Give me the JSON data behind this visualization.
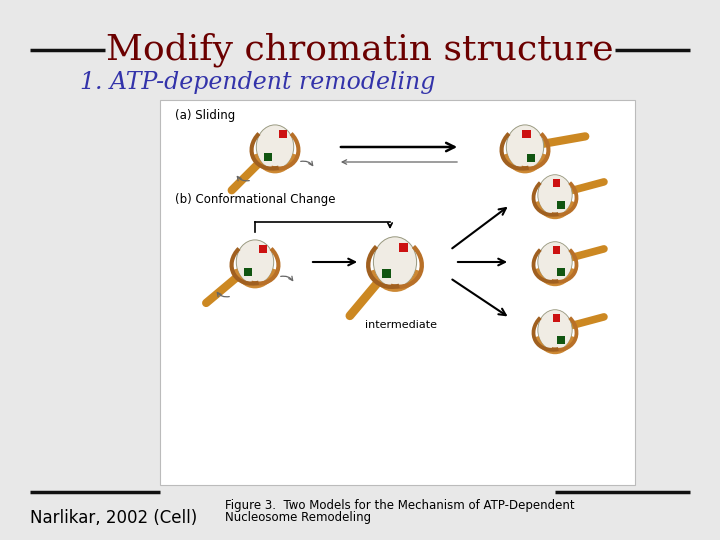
{
  "title": "Modify chromatin structure",
  "subtitle": "1. ATP-dependent remodeling",
  "citation": "Narlikar, 2002 (Cell)",
  "figure_caption_line1": "Figure 3.  Two Models for the Mechanism of ATP-Dependent",
  "figure_caption_line2": "Nucleosome Remodeling",
  "bg_color": "#e8e8e8",
  "panel_bg": "#ffffff",
  "title_color": "#6b0000",
  "subtitle_color": "#3333aa",
  "citation_color": "#000000",
  "caption_color": "#000000",
  "title_fontsize": 26,
  "subtitle_fontsize": 17,
  "citation_fontsize": 12,
  "caption_fontsize": 8.5,
  "dash_color": "#111111",
  "dna_color": "#cc8822",
  "histone_color": "#cc8833",
  "histone_dark": "#5a3a10",
  "red_marker": "#cc1111",
  "green_marker": "#115511"
}
